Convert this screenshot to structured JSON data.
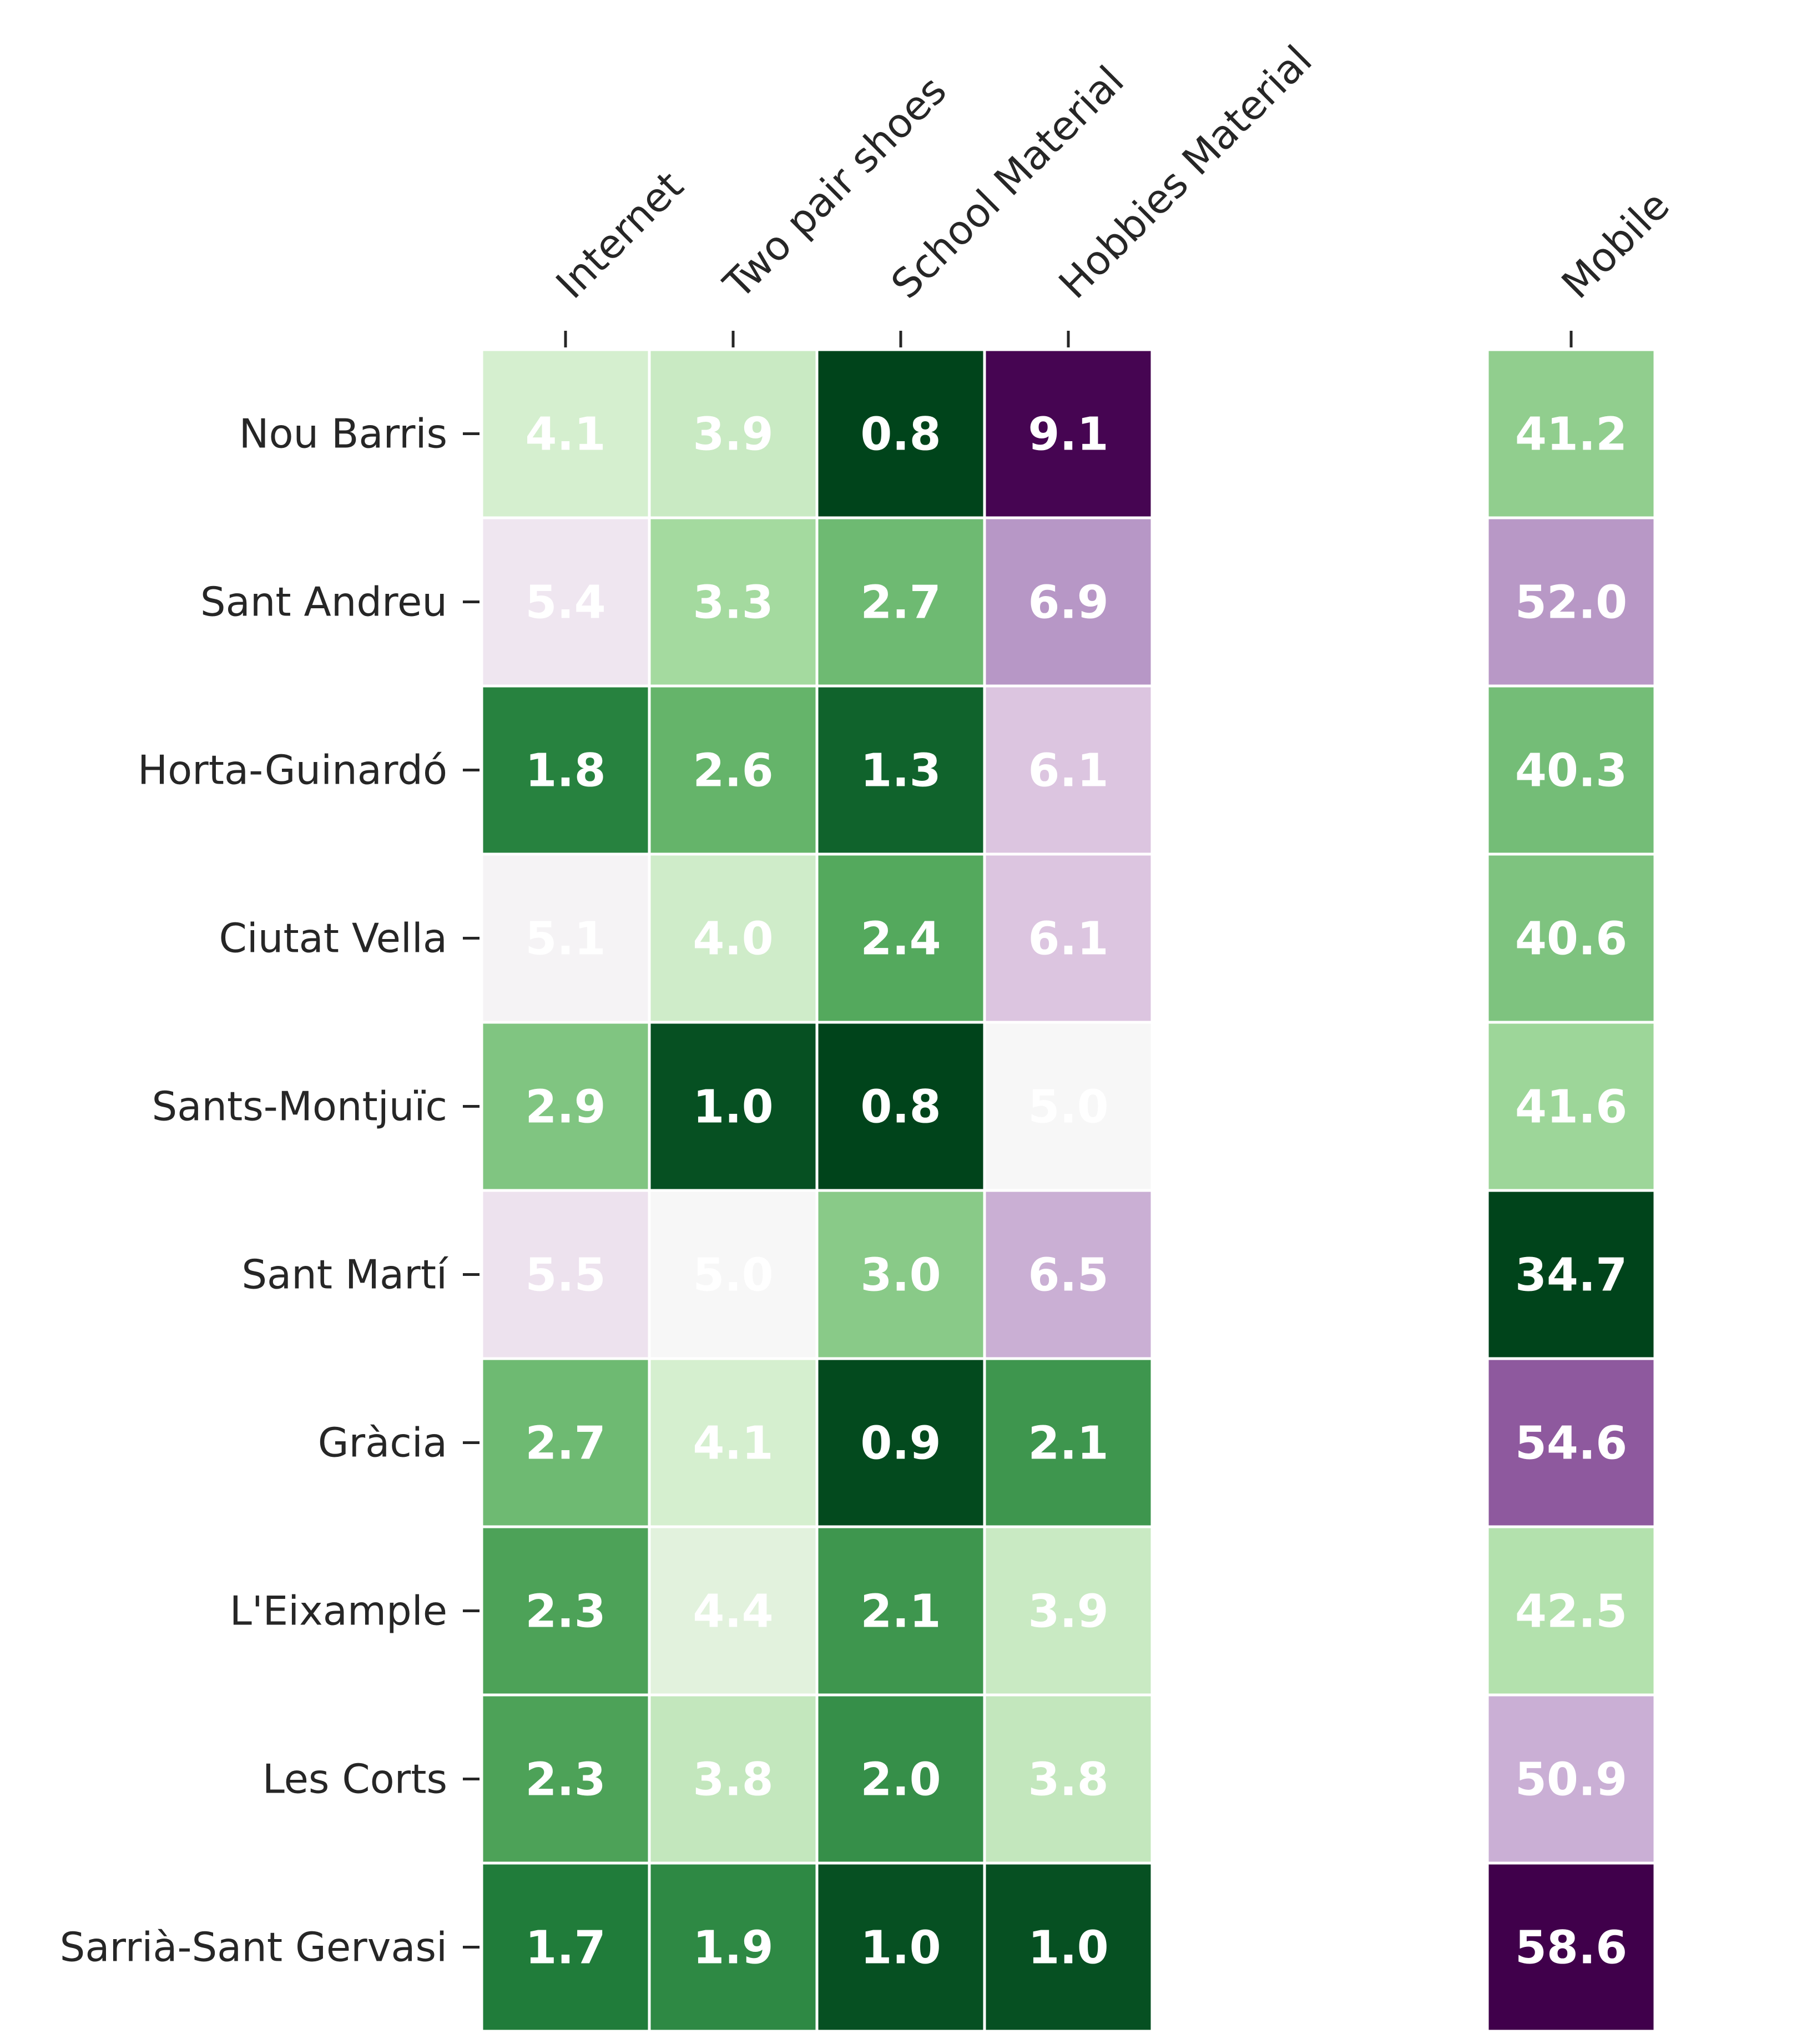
{
  "chart_data": [
    {
      "type": "heatmap",
      "columns": [
        "Internet",
        "Two pair shoes",
        "School Material",
        "Hobbies Material"
      ],
      "rows": [
        "Nou Barris",
        "Sant Andreu",
        "Horta-Guinardó",
        "Ciutat Vella",
        "Sants-Montjuïc",
        "Sant Martí",
        "Gràcia",
        "L'Eixample",
        "Les Corts",
        "Sarrià-Sant Gervasi"
      ],
      "values": [
        [
          4.1,
          3.9,
          0.8,
          9.1
        ],
        [
          5.4,
          3.3,
          2.7,
          6.9
        ],
        [
          1.8,
          2.6,
          1.3,
          6.1
        ],
        [
          5.1,
          4.0,
          2.4,
          6.1
        ],
        [
          2.9,
          1.0,
          0.8,
          5.0
        ],
        [
          5.5,
          5.0,
          3.0,
          6.5
        ],
        [
          2.7,
          4.1,
          0.9,
          2.1
        ],
        [
          2.3,
          4.4,
          2.1,
          3.9
        ],
        [
          2.3,
          3.8,
          2.0,
          3.8
        ],
        [
          1.7,
          1.9,
          1.0,
          1.0
        ]
      ],
      "value_labels": [
        [
          "4.1",
          "3.9",
          "0.8",
          "9.1"
        ],
        [
          "5.4",
          "3.3",
          "2.7",
          "6.9"
        ],
        [
          "1.8",
          "2.6",
          "1.3",
          "6.1"
        ],
        [
          "5.1",
          "4.0",
          "2.4",
          "6.1"
        ],
        [
          "2.9",
          "1.0",
          "0.8",
          "5.0"
        ],
        [
          "5.5",
          "5.0",
          "3.0",
          "6.5"
        ],
        [
          "2.7",
          "4.1",
          "0.9",
          "2.1"
        ],
        [
          "2.3",
          "4.4",
          "2.1",
          "3.9"
        ],
        [
          "2.3",
          "3.8",
          "2.0",
          "3.8"
        ],
        [
          "1.7",
          "1.9",
          "1.0",
          "1.0"
        ]
      ],
      "colormap": "PRGn_r",
      "center": 5.0,
      "vmin": 0.8,
      "vmax": 9.1,
      "value_label_color": "#ffffff"
    },
    {
      "type": "heatmap",
      "columns": [
        "Mobile"
      ],
      "rows": [
        "Nou Barris",
        "Sant Andreu",
        "Horta-Guinardó",
        "Ciutat Vella",
        "Sants-Montjuïc",
        "Sant Martí",
        "Gràcia",
        "L'Eixample",
        "Les Corts",
        "Sarrià-Sant Gervasi"
      ],
      "values": [
        [
          41.2
        ],
        [
          52.0
        ],
        [
          40.3
        ],
        [
          40.6
        ],
        [
          41.6
        ],
        [
          34.7
        ],
        [
          54.6
        ],
        [
          42.5
        ],
        [
          50.9
        ],
        [
          58.6
        ]
      ],
      "value_labels": [
        [
          "41.2"
        ],
        [
          "52.0"
        ],
        [
          "40.3"
        ],
        [
          "40.6"
        ],
        [
          "41.6"
        ],
        [
          "34.7"
        ],
        [
          "54.6"
        ],
        [
          "42.5"
        ],
        [
          "50.9"
        ],
        [
          "58.6"
        ]
      ],
      "colormap": "PRGn_r",
      "center": 46.65,
      "vmin": 34.7,
      "vmax": 58.6,
      "value_label_color": "#ffffff"
    }
  ],
  "colors": {
    "low_end": "#00441b",
    "mid": "#f7f7f7",
    "high_end": "#40004b",
    "grid_line": "#ffffff",
    "label_text": "#262626"
  }
}
